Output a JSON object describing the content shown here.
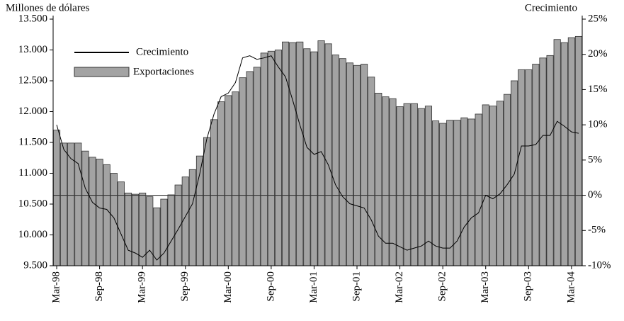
{
  "chart_data": {
    "type": "bar_line",
    "ylabel": "Millones de dólares",
    "y2label": "Crecimiento",
    "categories": [
      "Mar-98",
      null,
      null,
      null,
      null,
      null,
      "Sep-98",
      null,
      null,
      null,
      null,
      null,
      "Mar-99",
      null,
      null,
      null,
      null,
      null,
      "Sep-99",
      null,
      null,
      null,
      null,
      null,
      "Mar-00",
      null,
      null,
      null,
      null,
      null,
      "Sep-00",
      null,
      null,
      null,
      null,
      null,
      "Mar-01",
      null,
      null,
      null,
      null,
      null,
      "Sep-01",
      null,
      null,
      null,
      null,
      null,
      "Mar-02",
      null,
      null,
      null,
      null,
      null,
      "Sep-02",
      null,
      null,
      null,
      null,
      null,
      "Mar-03",
      null,
      null,
      null,
      null,
      null,
      "Sep-03",
      null,
      null,
      null,
      null,
      null,
      "Mar-04",
      null
    ],
    "series": [
      {
        "name": "Exportaciones",
        "type": "bar",
        "color": "#a3a3a3",
        "values": [
          11700,
          11490,
          11490,
          11490,
          11360,
          11260,
          11230,
          11140,
          11000,
          10860,
          10680,
          10660,
          10680,
          10620,
          10440,
          10580,
          10650,
          10810,
          10940,
          11060,
          11280,
          11580,
          11870,
          12160,
          12260,
          12320,
          12550,
          12650,
          12720,
          12950,
          12980,
          13000,
          13130,
          13120,
          13130,
          13020,
          12970,
          13150,
          13100,
          12920,
          12860,
          12790,
          12750,
          12770,
          12560,
          12300,
          12240,
          12210,
          12080,
          12130,
          12130,
          12050,
          12090,
          11850,
          11810,
          11860,
          11860,
          11900,
          11880,
          11960,
          12110,
          12090,
          12170,
          12280,
          12500,
          12680,
          12680,
          12770,
          12870,
          12910,
          13170,
          13120,
          13200,
          13220
        ]
      },
      {
        "name": "Crecimiento",
        "type": "line",
        "axis": "y2",
        "color": "#000000",
        "values": [
          10,
          6.5,
          5.2,
          4.5,
          1.0,
          -1.0,
          -1.8,
          -2.0,
          -3.2,
          -5.5,
          -7.8,
          -8.2,
          -8.8,
          -7.8,
          -9.2,
          -8.2,
          -6.5,
          -4.8,
          -3.0,
          -1.2,
          3.0,
          8.0,
          11.5,
          14.0,
          14.5,
          16.0,
          19.5,
          19.8,
          19.3,
          19.5,
          19.8,
          18.2,
          16.8,
          13.5,
          10.0,
          6.8,
          5.8,
          6.2,
          4.3,
          1.5,
          -0.2,
          -1.2,
          -1.5,
          -1.8,
          -3.5,
          -5.8,
          -6.8,
          -6.8,
          -7.3,
          -7.8,
          -7.5,
          -7.2,
          -6.5,
          -7.2,
          -7.5,
          -7.5,
          -6.5,
          -4.5,
          -3.2,
          -2.5,
          0,
          -0.5,
          0.2,
          1.5,
          3.0,
          7.0,
          7.0,
          7.2,
          8.5,
          8.5,
          10.5,
          9.8,
          9.0,
          8.8
        ]
      }
    ],
    "ylim": [
      9500,
      13500
    ],
    "yticks": [
      {
        "value": 9500,
        "label": "9.500"
      },
      {
        "value": 10000,
        "label": "10.000"
      },
      {
        "value": 10500,
        "label": "10.500"
      },
      {
        "value": 11000,
        "label": "11.000"
      },
      {
        "value": 11500,
        "label": "11.500"
      },
      {
        "value": 12000,
        "label": "12.000"
      },
      {
        "value": 12500,
        "label": "12.500"
      },
      {
        "value": 13000,
        "label": "13.000"
      },
      {
        "value": 13500,
        "label": "13.500"
      }
    ],
    "y2lim": [
      -10,
      25
    ],
    "y2ticks": [
      {
        "value": -10,
        "label": "-10%"
      },
      {
        "value": -5,
        "label": "-5%"
      },
      {
        "value": 0,
        "label": "0%"
      },
      {
        "value": 5,
        "label": "5%"
      },
      {
        "value": 10,
        "label": "10%"
      },
      {
        "value": 15,
        "label": "15%"
      },
      {
        "value": 20,
        "label": "20%"
      },
      {
        "value": 25,
        "label": "25%"
      }
    ],
    "legend": "upper left"
  }
}
